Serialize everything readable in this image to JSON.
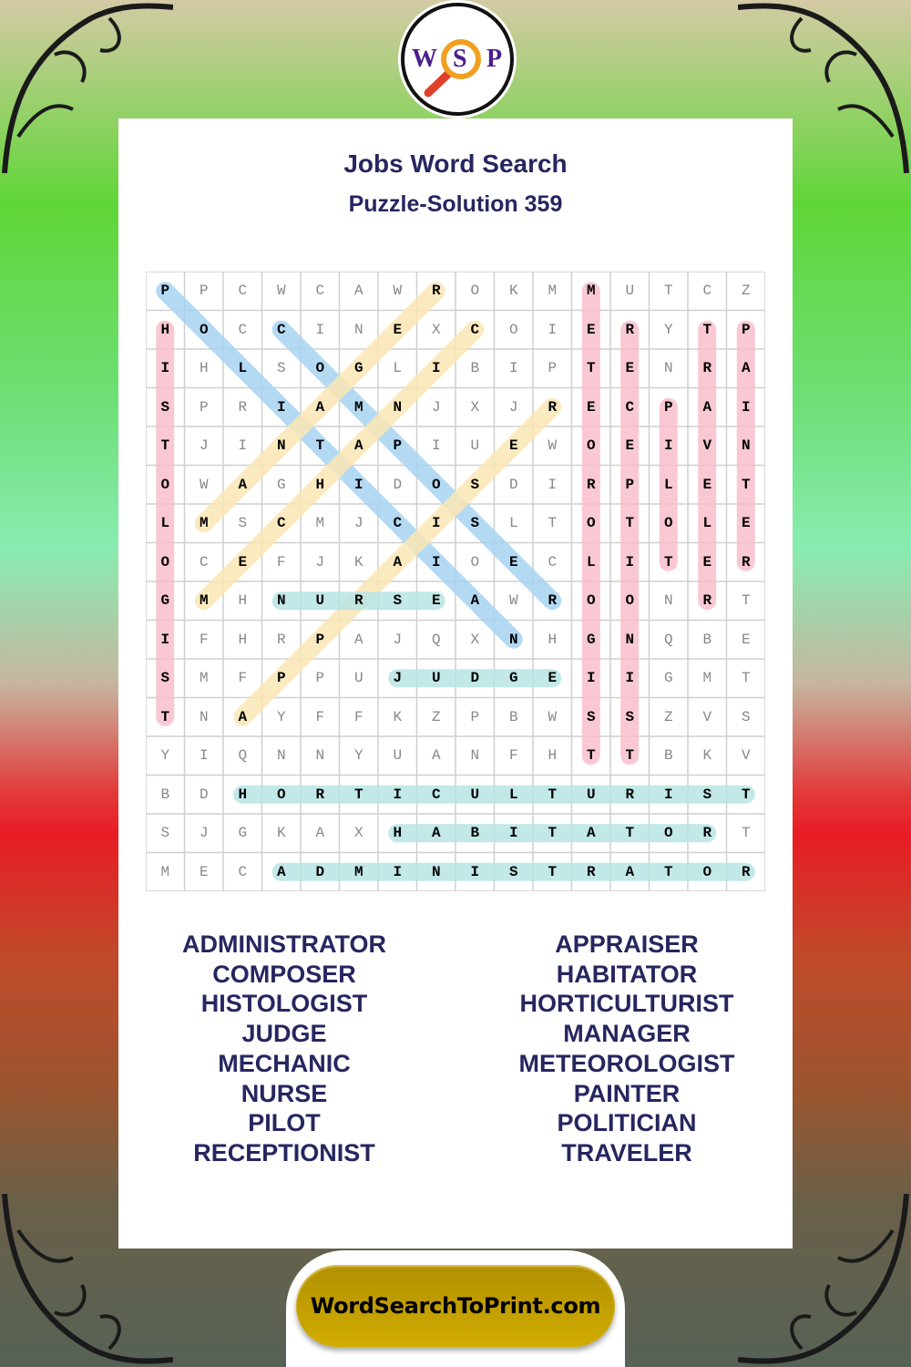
{
  "logo": {
    "letters": [
      "W",
      "S",
      "P"
    ],
    "icon": "magnifier-icon"
  },
  "header": {
    "title": "Jobs Word Search",
    "subtitle": "Puzzle-Solution 359"
  },
  "grid": {
    "rows": [
      "PPCWCAWROKMMUTCZ",
      "HOCCINEXCOIERYTP",
      "IHLSOGLIBIPTENRA",
      "SPRIAMNJXJRECPAI",
      "TJINTAPIUEWOEIVN",
      "OWAGHIDOSDIRPLET",
      "LMSCMJCISLTOTOLE",
      "OCEFJKAIOECLITER",
      "GMHNURSEAWROONRT",
      "IFHRPAJQXNHGNQBE",
      "SMFPPUJUDGEIIGMT",
      "TNAYFFKZPBWSSZVS",
      "YIQNNYUANFHTTBKV",
      "BDHORTICULTURIST",
      "SJGKAXHABITATORT",
      "MECADMINISTRATOR"
    ],
    "highlights": [
      {
        "word": "HISTOLOGIST",
        "from": [
          1,
          0
        ],
        "to": [
          11,
          0
        ],
        "color": "#f8bfcc"
      },
      {
        "word": "POLITICIAN",
        "from": [
          0,
          0
        ],
        "to": [
          9,
          9
        ],
        "color": "#a8d4f2"
      },
      {
        "word": "COMPOSER",
        "from": [
          1,
          3
        ],
        "to": [
          8,
          10
        ],
        "color": "#a8d4f2"
      },
      {
        "word": "MANAGER",
        "from": [
          6,
          1
        ],
        "to": [
          0,
          7
        ],
        "color": "#fbe7b4"
      },
      {
        "word": "MECHANIC",
        "from": [
          8,
          1
        ],
        "to": [
          1,
          8
        ],
        "color": "#fbe7b4"
      },
      {
        "word": "APPRAISER",
        "from": [
          11,
          2
        ],
        "to": [
          3,
          10
        ],
        "color": "#fbe7b4"
      },
      {
        "word": "METEOROLOGIST",
        "from": [
          0,
          11
        ],
        "to": [
          12,
          11
        ],
        "color": "#f8bfcc"
      },
      {
        "word": "RECEPTIONIST",
        "from": [
          1,
          12
        ],
        "to": [
          12,
          12
        ],
        "color": "#f8bfcc"
      },
      {
        "word": "PILOT",
        "from": [
          3,
          13
        ],
        "to": [
          7,
          13
        ],
        "color": "#f8bfcc"
      },
      {
        "word": "TRAVELER",
        "from": [
          1,
          14
        ],
        "to": [
          8,
          14
        ],
        "color": "#f8bfcc"
      },
      {
        "word": "PAINTER",
        "from": [
          1,
          15
        ],
        "to": [
          7,
          15
        ],
        "color": "#f8bfcc"
      },
      {
        "word": "NURSE",
        "from": [
          8,
          3
        ],
        "to": [
          8,
          7
        ],
        "color": "#b8e4e4"
      },
      {
        "word": "JUDGE",
        "from": [
          10,
          6
        ],
        "to": [
          10,
          10
        ],
        "color": "#b8e4e4"
      },
      {
        "word": "HORTICULTURIST",
        "from": [
          13,
          2
        ],
        "to": [
          13,
          15
        ],
        "color": "#b8e4e4"
      },
      {
        "word": "HABITATOR",
        "from": [
          14,
          6
        ],
        "to": [
          14,
          14
        ],
        "color": "#b8e4e4"
      },
      {
        "word": "ADMINISTRATOR",
        "from": [
          15,
          3
        ],
        "to": [
          15,
          15
        ],
        "color": "#b8e4e4"
      }
    ]
  },
  "words_left": [
    "ADMINISTRATOR",
    "COMPOSER",
    "HISTOLOGIST",
    "JUDGE",
    "MECHANIC",
    "NURSE",
    "PILOT",
    "RECEPTIONIST"
  ],
  "words_right": [
    "APPRAISER",
    "HABITATOR",
    "HORTICULTURIST",
    "MANAGER",
    "METEOROLOGIST",
    "PAINTER",
    "POLITICIAN",
    "TRAVELER"
  ],
  "footer": {
    "site_label": "WordSearchToPrint.com"
  }
}
